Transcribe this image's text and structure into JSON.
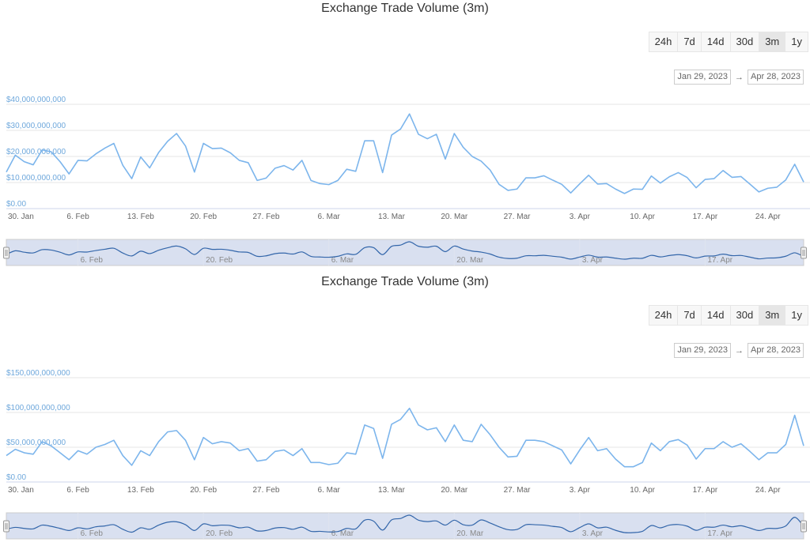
{
  "chart_data": [
    {
      "type": "line",
      "title": "Exchange Trade Volume (3m)",
      "range_buttons": [
        "24h",
        "7d",
        "14d",
        "30d",
        "3m",
        "1y"
      ],
      "active_range": "3m",
      "date_from": "Jan 29, 2023",
      "date_arrow": "→",
      "date_to": "Apr 28, 2023",
      "ylim": [
        0,
        40000000000
      ],
      "y_ticks": [
        {
          "value": 0,
          "label": "$0.00"
        },
        {
          "value": 10000000000,
          "label": "$10,000,000,000"
        },
        {
          "value": 20000000000,
          "label": "$20,000,000,000"
        },
        {
          "value": 30000000000,
          "label": "$30,000,000,000"
        },
        {
          "value": 40000000000,
          "label": "$40,000,000,000"
        }
      ],
      "x_ticks": [
        "30. Jan",
        "6. Feb",
        "13. Feb",
        "20. Feb",
        "27. Feb",
        "6. Mar",
        "13. Mar",
        "20. Mar",
        "27. Mar",
        "3. Apr",
        "10. Apr",
        "17. Apr",
        "24. Apr"
      ],
      "navigator_ticks": [
        "6. Feb",
        "20. Feb",
        "6. Mar",
        "20. Mar",
        "3. Apr",
        "17. Apr"
      ],
      "line_color": "#7cb5ec",
      "values": [
        14000000000,
        20500000000,
        18000000000,
        16800000000,
        22500000000,
        21800000000,
        18000000000,
        13300000000,
        18500000000,
        18300000000,
        21000000000,
        23200000000,
        25000000000,
        16600000000,
        11500000000,
        19800000000,
        15600000000,
        21500000000,
        25800000000,
        28800000000,
        24000000000,
        14000000000,
        25000000000,
        23000000000,
        23200000000,
        21400000000,
        18500000000,
        17600000000,
        10800000000,
        11700000000,
        15500000000,
        16500000000,
        14800000000,
        18500000000,
        10800000000,
        9600000000,
        9200000000,
        10800000000,
        15100000000,
        14300000000,
        26000000000,
        26000000000,
        13800000000,
        28200000000,
        30500000000,
        36300000000,
        28500000000,
        26800000000,
        28500000000,
        19000000000,
        28800000000,
        23500000000,
        20000000000,
        18200000000,
        14800000000,
        9300000000,
        7000000000,
        7500000000,
        11800000000,
        11800000000,
        12600000000,
        10900000000,
        9300000000,
        6000000000,
        9500000000,
        12800000000,
        9400000000,
        9600000000,
        7500000000,
        5800000000,
        7500000000,
        7400000000,
        12500000000,
        9800000000,
        12200000000,
        13800000000,
        11900000000,
        8000000000,
        11200000000,
        11500000000,
        14600000000,
        12000000000,
        12300000000,
        9400000000,
        6400000000,
        7800000000,
        8200000000,
        11000000000,
        17000000000,
        10200000000
      ]
    },
    {
      "type": "line",
      "title": "Exchange Trade Volume (3m)",
      "range_buttons": [
        "24h",
        "7d",
        "14d",
        "30d",
        "3m",
        "1y"
      ],
      "active_range": "3m",
      "date_from": "Jan 29, 2023",
      "date_arrow": "→",
      "date_to": "Apr 28, 2023",
      "ylim": [
        0,
        150000000000
      ],
      "y_ticks": [
        {
          "value": 0,
          "label": "$0.00"
        },
        {
          "value": 50000000000,
          "label": "$50,000,000,000"
        },
        {
          "value": 100000000000,
          "label": "$100,000,000,000"
        },
        {
          "value": 150000000000,
          "label": "$150,000,000,000"
        }
      ],
      "x_ticks": [
        "30. Jan",
        "6. Feb",
        "13. Feb",
        "20. Feb",
        "27. Feb",
        "6. Mar",
        "13. Mar",
        "20. Mar",
        "27. Mar",
        "3. Apr",
        "10. Apr",
        "17. Apr",
        "24. Apr"
      ],
      "navigator_ticks": [
        "6. Feb",
        "20. Feb",
        "6. Mar",
        "20. Mar",
        "3. Apr",
        "17. Apr"
      ],
      "line_color": "#7cb5ec",
      "values": [
        38000000000,
        47000000000,
        42000000000,
        40000000000,
        58000000000,
        52000000000,
        42000000000,
        32000000000,
        45000000000,
        40000000000,
        50000000000,
        54000000000,
        60000000000,
        38000000000,
        24000000000,
        45000000000,
        38000000000,
        58000000000,
        72000000000,
        74000000000,
        60000000000,
        32000000000,
        64000000000,
        55000000000,
        58000000000,
        56000000000,
        45000000000,
        48000000000,
        30000000000,
        32000000000,
        44000000000,
        46000000000,
        38000000000,
        48000000000,
        28000000000,
        28000000000,
        25000000000,
        27000000000,
        42000000000,
        40000000000,
        82000000000,
        77000000000,
        34000000000,
        83000000000,
        90000000000,
        106000000000,
        82000000000,
        75000000000,
        78000000000,
        58000000000,
        82000000000,
        60000000000,
        58000000000,
        83000000000,
        68000000000,
        50000000000,
        36000000000,
        37000000000,
        60000000000,
        60000000000,
        58000000000,
        52000000000,
        46000000000,
        26000000000,
        46000000000,
        64000000000,
        45000000000,
        48000000000,
        33000000000,
        22000000000,
        22000000000,
        28000000000,
        56000000000,
        45000000000,
        58000000000,
        61000000000,
        53000000000,
        33000000000,
        48000000000,
        48000000000,
        58000000000,
        50000000000,
        55000000000,
        44000000000,
        32000000000,
        42000000000,
        42000000000,
        54000000000,
        96000000000,
        52000000000
      ]
    }
  ]
}
